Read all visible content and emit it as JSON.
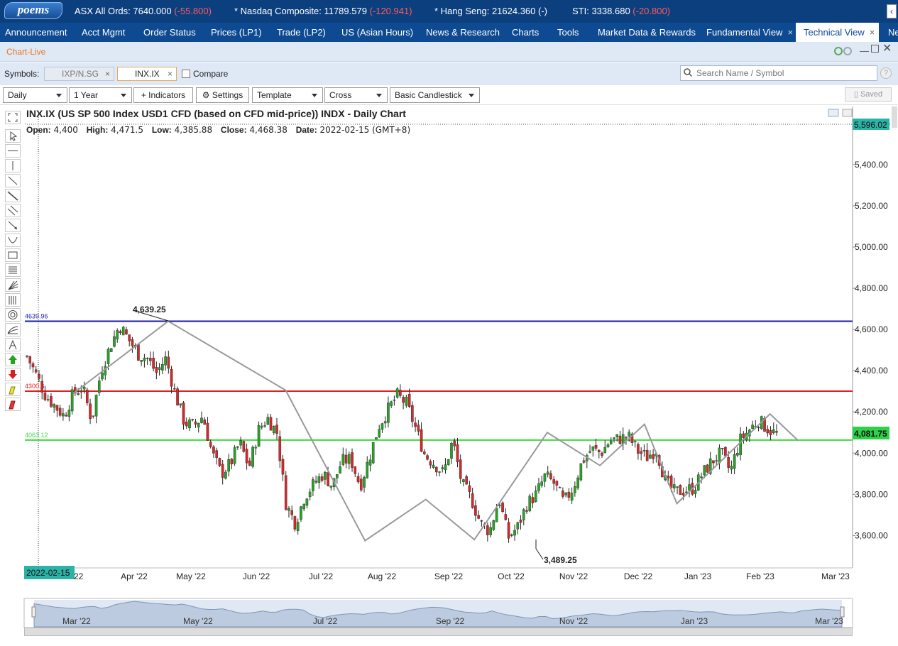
{
  "ticker": {
    "logo": "poems",
    "items": [
      {
        "label": "ASX All Ords: 7640.000 ",
        "change": "(-55.800)",
        "negative": true
      },
      {
        "label": "* Nasdaq Composite: 11789.579 ",
        "change": "(-120.941)",
        "negative": true
      },
      {
        "label": "* Hang Seng: 21624.360 ",
        "change": "(-)",
        "negative": false
      },
      {
        "label": "STI: 3338.680 ",
        "change": "(-20.800)",
        "negative": true
      }
    ],
    "arrow": "‹"
  },
  "nav": {
    "items": [
      {
        "label": "Announcement"
      },
      {
        "label": "Acct Mgmt"
      },
      {
        "label": "Order Status"
      },
      {
        "label": "Prices (LP1)"
      },
      {
        "label": "Trade (LP2)"
      },
      {
        "label": "US (Asian Hours)"
      },
      {
        "label": "News & Research"
      },
      {
        "label": "Charts"
      },
      {
        "label": "Tools"
      },
      {
        "label": "Market Data & Rewards"
      },
      {
        "label": "Fundamental View",
        "close": "×"
      },
      {
        "label": "Technical View",
        "close": "×",
        "active": true
      },
      {
        "label": "Ne"
      }
    ]
  },
  "window": {
    "title": "Chart-Live"
  },
  "symbols": {
    "label": "Symbols:",
    "chips": [
      {
        "label": "IXP/N.SG",
        "close": "×",
        "active": false
      },
      {
        "label": "INX.IX",
        "close": "×",
        "active": true
      }
    ],
    "compare_label": "Compare",
    "search_placeholder": "Search Name / Symbol",
    "help": "?"
  },
  "toolbar": {
    "interval": "Daily",
    "range": "1 Year",
    "indicators": "+ Indicators",
    "settings": "⚙ Settings",
    "template": "Template",
    "crosshair": "Cross",
    "chart_style": "Basic Candlestick",
    "saved": "▯ Saved"
  },
  "chart": {
    "title": "INX.IX (US SP 500 Index USD1 CFD (based on CFD mid-price)) INDX - Daily Chart",
    "ohlc": {
      "open_label": "Open:",
      "open": "4,400",
      "high_label": "High:",
      "high": "4,471.5",
      "low_label": "Low:",
      "low": "4,385.88",
      "close_label": "Close:",
      "close": "4,468.38",
      "date_label": "Date:",
      "date": "2022-02-15 (GMT+8)"
    },
    "crosshair_date": "2022-02-15",
    "first_month_tail": "22",
    "last_price_label": "4,081.75",
    "top_price_label": "5,596.02",
    "high_annotation": "4,639.25",
    "low_annotation": "3,489.25",
    "hlines": [
      {
        "label": "4639.96",
        "value": 4639.96,
        "color": "#1a1aa8"
      },
      {
        "label": "4300.6",
        "value": 4300.6,
        "color": "#e02020"
      },
      {
        "label": "4063.12",
        "value": 4063.12,
        "color": "#3ddc3d"
      }
    ],
    "colors": {
      "up": "#27a327",
      "down": "#d42a2a"
    }
  },
  "chart_data": {
    "type": "candlestick",
    "title": "INX.IX (US SP 500 Index USD1 CFD (based on CFD mid-price)) INDX - Daily Chart",
    "xlabel": "",
    "ylabel": "",
    "y_ticks": [
      "5,400.00",
      "5,200.00",
      "5,000.00",
      "4,800.00",
      "4,600.00",
      "4,400.00",
      "4,200.00",
      "4,000.00",
      "3,800.00",
      "3,600.00"
    ],
    "y_tick_values": [
      5400,
      5200,
      5000,
      4800,
      4600,
      4400,
      4200,
      4000,
      3800,
      3600
    ],
    "ylim": [
      3460,
      5596
    ],
    "x_ticks": [
      "Apr '22",
      "May '22",
      "Jun '22",
      "Jul '22",
      "Aug '22",
      "Sep '22",
      "Oct '22",
      "Nov '22",
      "Dec '22",
      "Jan '23",
      "Feb '23",
      "Mar '23"
    ],
    "overview_ticks": [
      "Mar '22",
      "May '22",
      "Jul '22",
      "Sep '22",
      "Nov '22",
      "Jan '23",
      "Mar '23"
    ],
    "close_path": [
      4470,
      4380,
      4280,
      4230,
      4180,
      4290,
      4320,
      4160,
      4400,
      4520,
      4620,
      4550,
      4480,
      4460,
      4390,
      4460,
      4290,
      4150,
      4130,
      4180,
      4000,
      3900,
      3950,
      4050,
      3930,
      4110,
      4170,
      4100,
      3750,
      3660,
      3790,
      3850,
      3900,
      3840,
      3960,
      3970,
      3840,
      3980,
      4130,
      4210,
      4280,
      4240,
      4120,
      3990,
      3950,
      3900,
      4060,
      3850,
      3780,
      3660,
      3620,
      3780,
      3590,
      3640,
      3750,
      3800,
      3890,
      3850,
      3760,
      3830,
      3960,
      4020,
      4000,
      4060,
      4070,
      4080,
      4010,
      3980,
      4020,
      3860,
      3810,
      3820,
      3830,
      3900,
      3960,
      4000,
      3910,
      4060,
      4110,
      4160,
      4120,
      4090
    ],
    "zigzag": [
      [
        60,
        4290
      ],
      [
        177,
        4640
      ],
      [
        322,
        4305
      ],
      [
        420,
        3575
      ],
      [
        495,
        3775
      ],
      [
        555,
        3580
      ],
      [
        645,
        4100
      ],
      [
        710,
        3940
      ],
      [
        765,
        4140
      ],
      [
        805,
        3755
      ],
      [
        920,
        4190
      ],
      [
        955,
        4060
      ]
    ],
    "zigzag_x_domain": [
      0,
      1000
    ]
  }
}
